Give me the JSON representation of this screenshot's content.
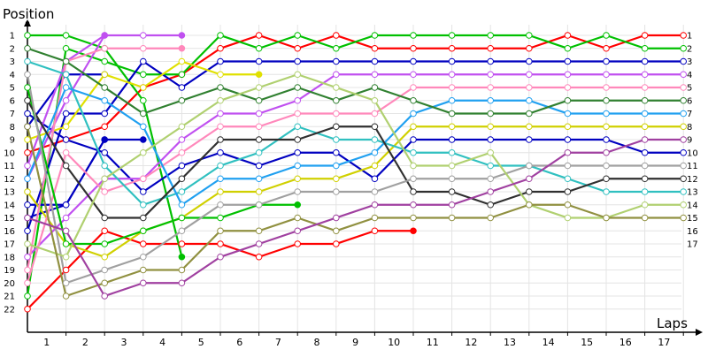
{
  "chart_data": {
    "type": "line",
    "ylabel": "Position",
    "xlabel": "Laps",
    "x_ticks": [
      "1",
      "2",
      "3",
      "4",
      "5",
      "6",
      "7",
      "8",
      "9",
      "10",
      "11",
      "12",
      "13",
      "14",
      "15",
      "16",
      "17"
    ],
    "y_ticks": [
      "1",
      "2",
      "3",
      "4",
      "5",
      "6",
      "7",
      "8",
      "9",
      "10",
      "11",
      "12",
      "13",
      "14",
      "15",
      "16",
      "17",
      "18",
      "19",
      "20",
      "21",
      "22"
    ],
    "right_labels": [
      "1",
      "2",
      "3",
      "4",
      "5",
      "6",
      "7",
      "8",
      "9",
      "10",
      "11",
      "12",
      "13",
      "14",
      "15",
      "16",
      "17"
    ],
    "ylim": [
      1,
      22
    ],
    "xlim": [
      0,
      17
    ],
    "grid": true,
    "series": [
      {
        "color": "#ff0000",
        "values": [
          22,
          19,
          16,
          17,
          17,
          17,
          18,
          17,
          17,
          16,
          16
        ]
      },
      {
        "color": "#ff0000",
        "values": [
          10,
          9,
          8,
          5,
          4,
          2,
          1,
          2,
          1,
          2,
          2,
          2,
          2,
          2,
          1,
          2,
          1,
          1
        ]
      },
      {
        "color": "#00c000",
        "values": [
          21,
          2,
          3,
          4,
          4,
          1,
          2,
          1,
          2,
          1,
          1,
          1,
          1,
          1,
          2,
          1,
          2,
          2
        ]
      },
      {
        "color": "#00c000",
        "values": [
          1,
          1,
          2,
          6,
          18
        ]
      },
      {
        "color": "#0000c0",
        "values": [
          16,
          7,
          7,
          3,
          5,
          3,
          3,
          3,
          3,
          3,
          3,
          3,
          3,
          3,
          3,
          3,
          3,
          3
        ]
      },
      {
        "color": "#0000c0",
        "values": [
          14,
          14,
          9,
          9
        ]
      },
      {
        "color": "#0000c0",
        "values": [
          7,
          9,
          10,
          13,
          11,
          10,
          11,
          10,
          10,
          12,
          9,
          9,
          9,
          9,
          9,
          9,
          10,
          10
        ]
      },
      {
        "color": "#0000c0",
        "values": [
          15,
          14,
          9
        ]
      },
      {
        "color": "#0000c0",
        "values": [
          8,
          4,
          4
        ]
      },
      {
        "color": "#d0d000",
        "values": [
          13,
          17,
          18,
          16,
          15,
          13,
          13,
          12,
          12,
          11,
          8,
          8,
          8,
          8,
          8,
          8,
          8,
          8
        ]
      },
      {
        "color": "#e0e000",
        "values": [
          9,
          8,
          4,
          5,
          3,
          4,
          4
        ]
      },
      {
        "color": "#c050f0",
        "values": [
          11,
          3,
          1,
          1,
          1
        ]
      },
      {
        "color": "#c050f0",
        "values": [
          12,
          6,
          1
        ]
      },
      {
        "color": "#c050f0",
        "values": [
          18,
          15,
          12,
          12,
          9,
          7,
          7,
          6,
          4,
          4,
          4,
          4,
          4,
          4,
          4,
          4,
          4,
          4
        ]
      },
      {
        "color": "#ff88bb",
        "values": [
          19,
          3,
          2,
          2,
          2
        ]
      },
      {
        "color": "#ff88bb",
        "values": [
          20,
          10,
          13,
          12,
          10,
          8,
          8,
          7,
          7,
          7,
          5,
          5,
          5,
          5,
          5,
          5,
          5,
          5
        ]
      },
      {
        "color": "#30c0c0",
        "values": [
          3,
          4,
          11,
          14,
          13,
          11,
          10,
          8,
          9,
          9,
          10,
          10,
          11,
          11,
          12,
          13,
          13,
          13
        ]
      },
      {
        "color": "#20a0f0",
        "values": [
          12,
          5,
          6,
          8,
          14,
          12,
          12,
          11,
          11,
          10,
          7,
          6,
          6,
          6,
          7,
          7,
          7,
          7
        ]
      },
      {
        "color": "#308030",
        "values": [
          2,
          3,
          5,
          7,
          6,
          5,
          6,
          5,
          6,
          5,
          6,
          7,
          7,
          7,
          6,
          6,
          6,
          6
        ]
      },
      {
        "color": "#00c000",
        "values": [
          5,
          17,
          17,
          16,
          15,
          15,
          14,
          14
        ]
      },
      {
        "color": "#303030",
        "values": [
          6,
          11,
          15,
          15,
          12,
          9,
          9,
          9,
          8,
          8,
          13,
          13,
          14,
          13,
          13,
          12,
          12,
          12
        ]
      },
      {
        "color": "#a0a0a0",
        "values": [
          4,
          20,
          19,
          18,
          16,
          14,
          14,
          13,
          13,
          13,
          12,
          12,
          12,
          11,
          11,
          11,
          11,
          11
        ]
      },
      {
        "color": "#b0d070",
        "values": [
          17,
          18,
          12,
          10,
          8,
          6,
          5,
          4,
          5,
          6,
          11,
          11,
          10,
          14,
          15,
          15,
          14,
          14
        ]
      },
      {
        "color": "#909040",
        "values": [
          8,
          21,
          20,
          19,
          19,
          16,
          16,
          15,
          16,
          15,
          15,
          15,
          15,
          14,
          14,
          15,
          15,
          15
        ]
      },
      {
        "color": "#a040a0",
        "values": [
          15,
          16,
          21,
          20,
          20,
          18,
          17,
          16,
          15,
          14,
          14,
          14,
          13,
          12,
          10,
          10,
          9,
          9
        ]
      }
    ]
  }
}
